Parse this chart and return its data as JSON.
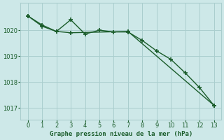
{
  "line1_x": [
    0,
    1,
    2,
    3,
    7,
    13
  ],
  "line1_y": [
    1020.55,
    1020.2,
    1019.95,
    1019.9,
    1019.95,
    1017.1
  ],
  "line2_x": [
    0,
    1,
    2,
    3,
    4,
    5,
    6,
    7,
    8,
    9,
    10,
    11,
    12,
    13
  ],
  "line2_y": [
    1020.55,
    1020.15,
    1019.95,
    1020.4,
    1019.85,
    1020.0,
    1019.93,
    1019.93,
    1019.6,
    1019.2,
    1018.87,
    1018.35,
    1017.78,
    1017.1
  ],
  "line_color": "#1a5c2a",
  "bg_color": "#cde8e8",
  "grid_color": "#aacece",
  "xlabel": "Graphe pression niveau de la mer (hPa)",
  "xlabel_color": "#1a5c2a",
  "ylabel_ticks": [
    1017,
    1018,
    1019,
    1020
  ],
  "xlim": [
    -0.5,
    13.5
  ],
  "ylim": [
    1016.55,
    1021.05
  ],
  "xticks": [
    0,
    1,
    2,
    3,
    4,
    5,
    6,
    7,
    8,
    9,
    10,
    11,
    12,
    13
  ]
}
